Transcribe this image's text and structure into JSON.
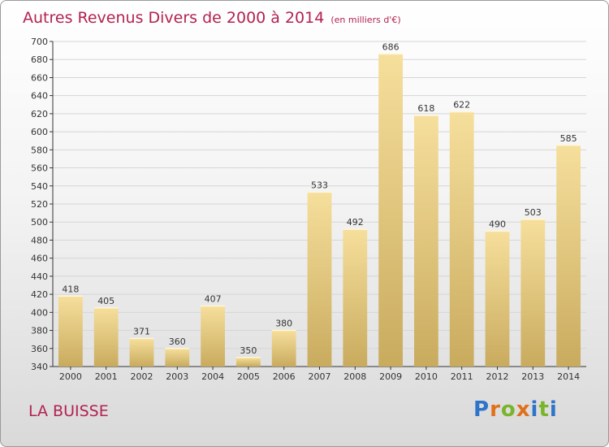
{
  "chart_data": {
    "type": "bar",
    "title": "Autres Revenus Divers de 2000 à 2014",
    "subtitle": "(en milliers d'€)",
    "categories": [
      "2000",
      "2001",
      "2002",
      "2003",
      "2004",
      "2005",
      "2006",
      "2007",
      "2008",
      "2009",
      "2010",
      "2011",
      "2012",
      "2013",
      "2014"
    ],
    "values": [
      418,
      405,
      371,
      360,
      407,
      350,
      380,
      533,
      492,
      686,
      618,
      622,
      490,
      503,
      585
    ],
    "ylim": [
      340,
      700
    ],
    "yticks": [
      340,
      360,
      380,
      400,
      420,
      440,
      460,
      480,
      500,
      520,
      540,
      560,
      580,
      600,
      620,
      640,
      660,
      680,
      700
    ],
    "grid": true,
    "colors": {
      "bar_top": "#f6df9c",
      "bar_bottom": "#c9ab5e",
      "title": "#b3224f",
      "grid": "#d6d6d6"
    }
  },
  "footer": {
    "location": "LA BUISSE",
    "brand_letters": [
      "P",
      "r",
      "o",
      "x",
      "i",
      "t",
      "i"
    ]
  }
}
